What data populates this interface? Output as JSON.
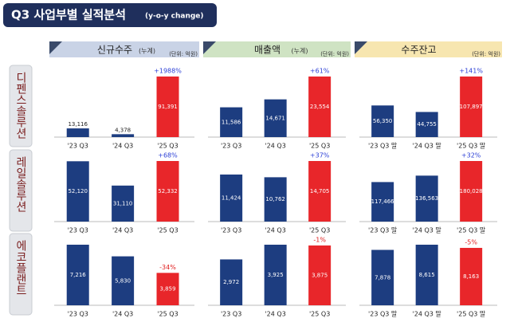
{
  "header": {
    "title": "Q3 사업부별 실적분석",
    "subtitle": "(y-o-y change)"
  },
  "columns": [
    {
      "title": "신규수주",
      "note": "(누계)",
      "unit": "(단위: 억원)",
      "color": "#c9d3e6"
    },
    {
      "title": "매출액",
      "note": "(누계)",
      "unit": "(단위: 억원)",
      "color": "#cfe3c3"
    },
    {
      "title": "수주잔고",
      "unit": "(단위: 억원)",
      "color": "#f7e6b0"
    }
  ],
  "rows": [
    "디펜스솔루션",
    "레일솔루션",
    "에코플랜트"
  ],
  "chart_data": [
    {
      "type": "bar",
      "categories": [
        "'23 Q3",
        "'24 Q3",
        "'25 Q3"
      ],
      "values": [
        13116,
        4378,
        91391
      ],
      "value_labels": [
        "13,116",
        "4,378",
        "91,391"
      ],
      "annotation": "+1988%",
      "annotation_color": "#2b3fd6",
      "colors": [
        "#1d3d80",
        "#1d3d80",
        "#e8262a"
      ]
    },
    {
      "type": "bar",
      "categories": [
        "'23 Q3",
        "'24 Q3",
        "'25 Q3"
      ],
      "values": [
        11586,
        14671,
        23554
      ],
      "value_labels": [
        "11,586",
        "14,671",
        "23,554"
      ],
      "annotation": "+61%",
      "annotation_color": "#2b3fd6",
      "colors": [
        "#1d3d80",
        "#1d3d80",
        "#e8262a"
      ]
    },
    {
      "type": "bar",
      "categories": [
        "'23 Q3 말",
        "'24 Q3 말",
        "'25 Q3 말"
      ],
      "values": [
        56350,
        44755,
        107897
      ],
      "value_labels": [
        "56,350",
        "44,755",
        "107,897"
      ],
      "annotation": "+141%",
      "annotation_color": "#2b3fd6",
      "colors": [
        "#1d3d80",
        "#1d3d80",
        "#e8262a"
      ]
    },
    {
      "type": "bar",
      "categories": [
        "'23 Q3",
        "'24 Q3",
        "'25 Q3"
      ],
      "values": [
        52120,
        31110,
        52332
      ],
      "value_labels": [
        "52,120",
        "31,110",
        "52,332"
      ],
      "annotation": "+68%",
      "annotation_color": "#2b3fd6",
      "colors": [
        "#1d3d80",
        "#1d3d80",
        "#e8262a"
      ]
    },
    {
      "type": "bar",
      "categories": [
        "'23 Q3",
        "'24 Q3",
        "'25 Q3"
      ],
      "values": [
        11424,
        10762,
        14705
      ],
      "value_labels": [
        "11,424",
        "10,762",
        "14,705"
      ],
      "annotation": "+37%",
      "annotation_color": "#2b3fd6",
      "colors": [
        "#1d3d80",
        "#1d3d80",
        "#e8262a"
      ]
    },
    {
      "type": "bar",
      "categories": [
        "'23 Q3 말",
        "'24 Q3 말",
        "'25 Q3 말"
      ],
      "values": [
        117466,
        136563,
        180028
      ],
      "value_labels": [
        "117,466",
        "136,563",
        "180,028"
      ],
      "annotation": "+32%",
      "annotation_color": "#2b3fd6",
      "colors": [
        "#1d3d80",
        "#1d3d80",
        "#e8262a"
      ]
    },
    {
      "type": "bar",
      "categories": [
        "'23 Q3",
        "'24 Q3",
        "'25 Q3"
      ],
      "values": [
        7216,
        5830,
        3859
      ],
      "value_labels": [
        "7,216",
        "5,830",
        "3,859"
      ],
      "annotation": "-34%",
      "annotation_color": "#e02020",
      "colors": [
        "#1d3d80",
        "#1d3d80",
        "#e8262a"
      ]
    },
    {
      "type": "bar",
      "categories": [
        "'23 Q3",
        "'24 Q3",
        "'25 Q3"
      ],
      "values": [
        2972,
        3925,
        3875
      ],
      "value_labels": [
        "2,972",
        "3,925",
        "3,875"
      ],
      "annotation": "-1%",
      "annotation_color": "#e02020",
      "colors": [
        "#1d3d80",
        "#1d3d80",
        "#e8262a"
      ]
    },
    {
      "type": "bar",
      "categories": [
        "'23 Q3 말",
        "'24 Q3 말",
        "'25 Q3 말"
      ],
      "values": [
        7878,
        8615,
        8163
      ],
      "value_labels": [
        "7,878",
        "8,615",
        "8,163"
      ],
      "annotation": "-5%",
      "annotation_color": "#e02020",
      "colors": [
        "#1d3d80",
        "#1d3d80",
        "#e8262a"
      ]
    }
  ]
}
